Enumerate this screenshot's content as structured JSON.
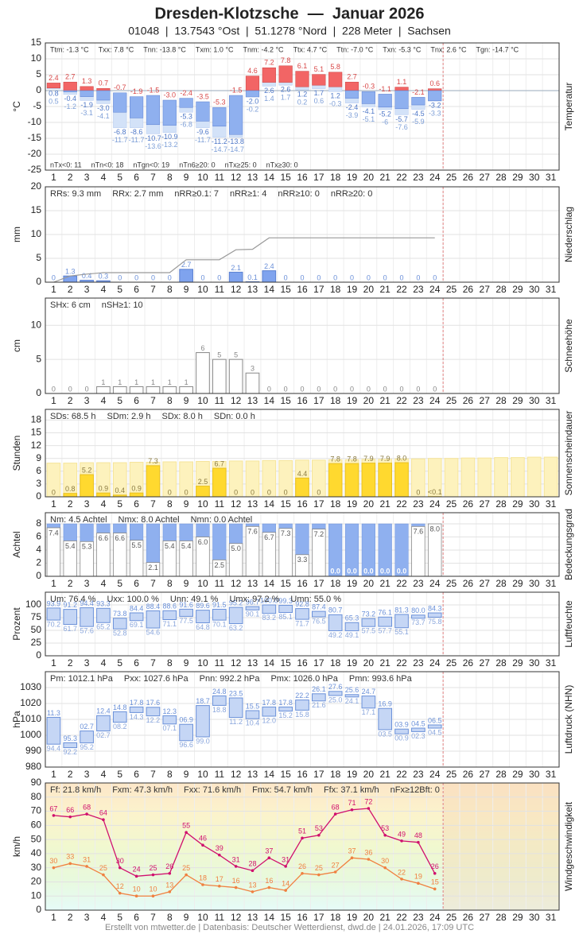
{
  "title": "Dresden-Klotzsche  —  Januar 2026",
  "subtitle": "01048  |  13.7543 °Ost  |  51.1278 °Nord  |  228 Meter  |  Sachsen",
  "footer": "Erstellt von mtwetter.de | Datenbasis: Deutscher Wetterdienst, dwd.de | 24.01.2026, 17:09 UTC",
  "days": [
    1,
    2,
    3,
    4,
    5,
    6,
    7,
    8,
    9,
    10,
    11,
    12,
    13,
    14,
    15,
    16,
    17,
    18,
    19,
    20,
    21,
    22,
    23,
    24,
    25,
    26,
    27,
    28,
    29,
    30,
    31
  ],
  "chart_data": [
    {
      "type": "temperature",
      "title": "Temperatur",
      "ylabel": "°C",
      "ylim": [
        -25,
        15
      ],
      "yticks": [
        -25,
        -20,
        -15,
        -10,
        -5,
        0,
        5,
        10,
        15
      ],
      "grid": true,
      "stats": [
        "Ttm: -1.3 °C",
        "Txx: 7.8 °C",
        "Tnn: -13.8 °C",
        "Txm: 1.0 °C",
        "Tnm: -4.2 °C",
        "Ttx: 4.7 °C",
        "Ttn: -7.0 °C",
        "Txn: -5.3 °C",
        "Tnx: 2.6 °C",
        "Tgn: -14.7 °C"
      ],
      "stats_bottom": [
        "nTx<0: 11",
        "nTn<0: 18",
        "nTgn<0: 19",
        "nTn6≥20: 0",
        "nTx≥25: 0",
        "nTx≥30: 0"
      ],
      "series": [
        {
          "color": "#f26565",
          "label_color": "#d84848",
          "values": [
            2.4,
            2.7,
            1.3,
            0.7,
            -0.7,
            -1.9,
            -1.5,
            -3.0,
            -2.4,
            -3.5,
            -5.3,
            -1.5,
            4.6,
            7.2,
            7.8,
            6.1,
            5.1,
            5.8,
            2.7,
            -0.3,
            -1.1,
            1.1,
            -2.1,
            0.6,
            null,
            null,
            null,
            null,
            null,
            null,
            null
          ],
          "value_labels": [
            null,
            null,
            null,
            null,
            null,
            null,
            null,
            "-3.0",
            null,
            null,
            null,
            null,
            null,
            null,
            null,
            null,
            null,
            null,
            null,
            null,
            null,
            null,
            null,
            null,
            null,
            null,
            null,
            null,
            null,
            null,
            null
          ]
        },
        {
          "color": "#8fb0ef",
          "label_color": "#4f78c8",
          "values": [
            0.8,
            -0.4,
            -1.9,
            -3.0,
            -6.8,
            -8.6,
            -10.7,
            -10.9,
            -5.3,
            -9.6,
            -11.2,
            -13.8,
            -2.0,
            2.6,
            2.6,
            1.2,
            1.7,
            1.2,
            -2.4,
            -4.1,
            -5.2,
            -5.7,
            -4.5,
            -3.2,
            null,
            null,
            null,
            null,
            null,
            null,
            null
          ],
          "value_labels": [
            null,
            null,
            null,
            "-3.0",
            null,
            null,
            null,
            null,
            null,
            null,
            null,
            null,
            "-2.0",
            null,
            null,
            null,
            null,
            null,
            null,
            null,
            null,
            null,
            null,
            null,
            null,
            null,
            null,
            null,
            null,
            null,
            null
          ]
        },
        {
          "color": "#d3e2f8",
          "label_color": "#7fa0d8",
          "values": [
            0.5,
            -1.2,
            -3.1,
            -4.1,
            -11.7,
            -11.7,
            -13.6,
            -13.2,
            -6.8,
            -11.7,
            -14.7,
            -14.7,
            -0.2,
            1.4,
            1.7,
            0.2,
            0.6,
            -0.3,
            -3.9,
            -5.1,
            -6.0,
            -7.6,
            -5.9,
            -3.3,
            null,
            null,
            null,
            null,
            null,
            null,
            null
          ]
        }
      ]
    },
    {
      "type": "bar",
      "title": "Niederschlag",
      "ylabel": "mm",
      "ylim": [
        0,
        20
      ],
      "yticks": [
        0,
        5,
        10,
        15,
        20
      ],
      "grid": true,
      "cumulative": true,
      "cumulative_color": "#999999",
      "stats": [
        "RRs: 9.3 mm",
        "RRx: 2.7 mm",
        "nRR≥0.1: 7",
        "nRR≥1: 4",
        "nRR≥10: 0",
        "nRR≥20: 0"
      ],
      "series": [
        {
          "color": "#7fa3ee",
          "stroke": "#5b80d0",
          "label_color": "#6a8fd8",
          "values": [
            0,
            1.3,
            0.4,
            0.3,
            0,
            0,
            0,
            0,
            2.7,
            0,
            0,
            2.1,
            0.1,
            2.4,
            0,
            0,
            0,
            0,
            0,
            0,
            0,
            0,
            0,
            0,
            null,
            null,
            null,
            null,
            null,
            null,
            null
          ]
        }
      ]
    },
    {
      "type": "bar",
      "title": "Schneehöhe",
      "ylabel": "cm",
      "ylim": [
        0,
        14
      ],
      "yticks": [
        0,
        5,
        10
      ],
      "grid": true,
      "stats": [
        "SHx: 6 cm",
        "nSH≥1: 10"
      ],
      "series": [
        {
          "color": "#ffffff",
          "stroke": "#888888",
          "label_color": "#888888",
          "values": [
            0,
            0,
            0,
            1,
            1,
            1,
            1,
            1,
            1,
            6,
            5,
            5,
            3,
            0,
            0,
            0,
            0,
            0,
            0,
            0,
            0,
            0,
            0,
            0,
            null,
            null,
            null,
            null,
            null,
            null,
            null
          ]
        }
      ]
    },
    {
      "type": "bar",
      "title": "Sonnenscheindauer",
      "ylabel": "Stunden",
      "ylim": [
        0,
        20.5
      ],
      "yticks": [
        0,
        3,
        6,
        9,
        12,
        15,
        18
      ],
      "grid": true,
      "stats": [
        "SDs: 68.5 h",
        "SDm: 2.9 h",
        "SDx: 8.0 h",
        "SDn: 0.0 h"
      ],
      "series": [
        {
          "color": "#fdf2bd",
          "stroke": "#f5e49a",
          "labels": false,
          "values": [
            7.9,
            7.9,
            8.0,
            8.0,
            8.0,
            8.1,
            8.1,
            8.2,
            8.2,
            8.3,
            8.3,
            8.4,
            8.4,
            8.5,
            8.5,
            8.6,
            8.6,
            8.7,
            8.7,
            8.8,
            8.8,
            8.9,
            8.9,
            9.0,
            9.0,
            9.1,
            9.1,
            9.2,
            9.2,
            9.3,
            9.3
          ]
        },
        {
          "color": "#ffd92f",
          "stroke": "#e8c020",
          "label_color": "#8a7a40",
          "values": [
            0,
            0.8,
            5.2,
            0.9,
            0.4,
            0.9,
            7.3,
            0,
            0,
            2.5,
            6.7,
            0,
            0,
            0,
            0,
            4.4,
            0,
            7.8,
            7.8,
            7.9,
            7.9,
            8.0,
            0,
            0.05,
            null,
            null,
            null,
            null,
            null,
            null,
            null
          ],
          "value_labels": [
            null,
            null,
            null,
            null,
            null,
            null,
            null,
            null,
            null,
            null,
            null,
            null,
            null,
            null,
            null,
            null,
            null,
            null,
            null,
            null,
            null,
            "8.0",
            null,
            "<0.1",
            null,
            null,
            null,
            null,
            null,
            null,
            null
          ]
        }
      ]
    },
    {
      "type": "cloud",
      "title": "Bedeckungsgrad",
      "ylabel": "Achtel",
      "ylim": [
        0,
        9.7
      ],
      "yticks": [
        0,
        2,
        4,
        6,
        8
      ],
      "grid": true,
      "stats": [
        "Nm: 4.5 Achtel",
        "Nmx: 8.0 Achtel",
        "Nmn: 0.0 Achtel"
      ],
      "series": [
        {
          "color": "#8fb0ef",
          "stroke": "#888888",
          "values": [
            7.4,
            5.4,
            5.3,
            6.6,
            6.6,
            5.5,
            2.1,
            5.4,
            5.4,
            6.0,
            2.5,
            5.0,
            7.6,
            6.7,
            7.3,
            3.3,
            7.2,
            0,
            0,
            0,
            0,
            0,
            7.6,
            8.0,
            null,
            null,
            null,
            null,
            null,
            null,
            null
          ],
          "value_labels": [
            null,
            null,
            null,
            null,
            null,
            null,
            null,
            null,
            null,
            "6.0",
            null,
            "5.0",
            null,
            null,
            null,
            null,
            null,
            "0.0",
            "0.0",
            "0.0",
            "0.0",
            "0.0",
            null,
            "8.0",
            null,
            null,
            null,
            null,
            null,
            null,
            null
          ]
        }
      ]
    },
    {
      "type": "range",
      "title": "Luftfeuchte",
      "ylabel": "Prozent",
      "ylim": [
        0,
        125
      ],
      "yticks": [
        0,
        25,
        50,
        75,
        100
      ],
      "grid": true,
      "color": "#c5d6f5",
      "stroke": "#6a90d8",
      "stats": [
        "Um: 76.4 %",
        "Uxx: 100.0 %",
        "Unn: 49.1 %",
        "Umx: 97.2 %",
        "Umn: 55.0 %"
      ],
      "series": [
        {
          "values": [
            93.9,
            91.2,
            94.4,
            93.3,
            73.8,
            84.4,
            88.4,
            88.6,
            91.6,
            89.6,
            91.5,
            95.2,
            96.7,
            100,
            99.3,
            92.8,
            87.4,
            80.7,
            65.3,
            73.2,
            76.1,
            81.3,
            80.0,
            84.3,
            null,
            null,
            null,
            null,
            null,
            null,
            null
          ],
          "value_labels": [
            null,
            null,
            null,
            null,
            null,
            null,
            null,
            null,
            null,
            null,
            null,
            null,
            null,
            "100.0",
            null,
            null,
            null,
            null,
            null,
            null,
            null,
            null,
            "80.0",
            null,
            null,
            null,
            null,
            null,
            null,
            null,
            null
          ]
        },
        {
          "values": [
            70.2,
            61.7,
            57.6,
            65.2,
            52.8,
            69.1,
            54.6,
            71.1,
            77.5,
            64.8,
            70.1,
            63.2,
            90.1,
            83.2,
            85.1,
            71.7,
            76.5,
            49.2,
            49.1,
            57.5,
            57.7,
            55.1,
            73.7,
            75.8,
            null,
            null,
            null,
            null,
            null,
            null,
            null
          ]
        }
      ]
    },
    {
      "type": "range",
      "title": "Luftdruck (NHN)",
      "ylabel": "hPa",
      "ylim": [
        980,
        1040
      ],
      "yticks": [
        980,
        990,
        1000,
        1010,
        1020,
        1030
      ],
      "grid": true,
      "color": "#c5d6f5",
      "stroke": "#6a90d8",
      "stats": [
        "Pm: 1012.1 hPa",
        "Pxx: 1027.6 hPa",
        "Pnn: 992.2 hPa",
        "Pmx: 1026.0 hPa",
        "Pmn: 993.6 hPa"
      ],
      "series": [
        {
          "values": [
            1011.3,
            995.3,
            1002.7,
            1012.4,
            1014.8,
            1017.8,
            1017.6,
            1012.3,
            1006.9,
            1018.7,
            1024.8,
            1023.5,
            1015.5,
            1017.8,
            1017.8,
            1022.2,
            1026.1,
            1027.6,
            1025.6,
            1024.7,
            1016.9,
            1003.9,
            1004.5,
            1006.5,
            null,
            null,
            null,
            null,
            null,
            null,
            null
          ],
          "value_labels": [
            "11.3",
            "95.3",
            "02.7",
            "12.4",
            "14.8",
            "17.8",
            "17.6",
            "12.3",
            "06.9",
            "18.7",
            "24.8",
            "23.5",
            "15.5",
            "17.8",
            "17.8",
            "22.2",
            "26.1",
            "27.6",
            "25.6",
            "24.7",
            "16.9",
            "03.9",
            "04.5",
            "06.5",
            null,
            null,
            null,
            null,
            null,
            null,
            null
          ]
        },
        {
          "values": [
            994.4,
            992.2,
            995.2,
            1002.7,
            1008.2,
            1014.3,
            1012.2,
            1007.1,
            996.6,
            999.0,
            1018.8,
            1011.2,
            1010.4,
            1012.0,
            1015.2,
            1015.8,
            1021.6,
            1025.0,
            1024.1,
            1017.1,
            1003.5,
            1000.9,
            1002.3,
            1004.5,
            null,
            null,
            null,
            null,
            null,
            null,
            null
          ],
          "value_labels": [
            "94.4",
            "92.2",
            "95.2",
            "02.7",
            "08.2",
            "14.3",
            "12.2",
            "07.1",
            "96.6",
            "99.0",
            "18.8",
            "11.2",
            "10.4",
            "12.0",
            "15.2",
            "15.8",
            "21.6",
            "25.0",
            "24.1",
            "17.1",
            "03.5",
            "00.9",
            "02.3",
            "04.5",
            null,
            null,
            null,
            null,
            null,
            null,
            null
          ]
        }
      ]
    },
    {
      "type": "line",
      "title": "Windgeschwindigkeit",
      "ylabel": "km/h",
      "ylim": [
        0,
        90
      ],
      "yticks": [
        0,
        10,
        20,
        30,
        40,
        50,
        60,
        70,
        80,
        90
      ],
      "grid": true,
      "stats": [
        "Ff: 21.8 km/h",
        "Fxm: 47.3 km/h",
        "Fxx: 71.6 km/h",
        "Fmx: 54.7 km/h",
        "Ffx: 37.1 km/h",
        "nFx≥12Bft: 0"
      ],
      "series": [
        {
          "color": "#d0106e",
          "values": [
            67,
            66,
            68,
            64,
            30,
            24,
            25,
            26,
            55,
            46,
            39,
            31,
            28,
            37,
            31,
            51,
            53,
            68,
            71,
            72,
            53,
            49,
            48,
            26,
            null,
            null,
            null,
            null,
            null,
            null,
            null
          ]
        },
        {
          "color": "#f08040",
          "values": [
            30,
            33,
            31,
            25,
            12,
            10,
            10,
            13,
            25,
            18,
            17,
            16,
            13,
            16,
            14,
            26,
            25,
            27,
            37,
            36,
            30,
            22,
            19,
            15,
            null,
            null,
            null,
            null,
            null,
            null,
            null
          ]
        }
      ]
    }
  ]
}
